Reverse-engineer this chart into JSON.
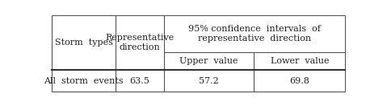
{
  "col1_header": "Storm  types",
  "col2_header": "Representative\ndirection",
  "col3_header": "95% confidence  intervals  of\nrepresentative  direction",
  "col3a_header": "Upper  value",
  "col3b_header": "Lower  value",
  "row1_col1": "All  storm  events",
  "row1_col2": "63.5",
  "row1_col3a": "57.2",
  "row1_col3b": "69.8",
  "bg_color": "#ffffff",
  "border_color": "#555555",
  "thick_line_color": "#333333",
  "text_color": "#222222",
  "font_size": 8.0
}
